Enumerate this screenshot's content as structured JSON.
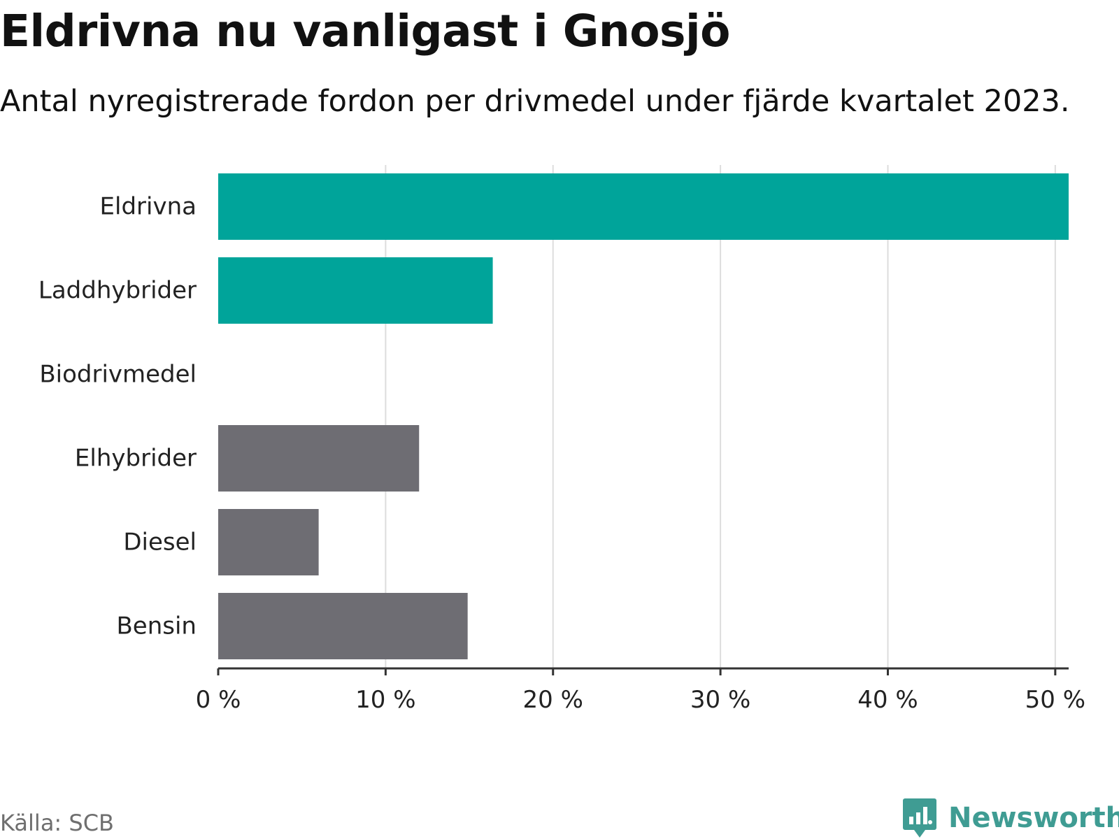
{
  "header": {
    "title": "Eldrivna nu vanligast i Gnosjö",
    "subtitle": "Antal nyregistrerade fordon per drivmedel under fjärde kvartalet 2023."
  },
  "footer": {
    "source": "Källa: SCB",
    "brand_name": "Newsworthy",
    "brand_icon": "newsworthy-logo-icon"
  },
  "colors": {
    "highlight": "#00A49A",
    "neutral": "#6E6D73",
    "grid": "#DDDDDD",
    "axis": "#333333",
    "brand": "#3F9C93"
  },
  "chart_data": {
    "type": "bar",
    "orientation": "horizontal",
    "title": "Eldrivna nu vanligast i Gnosjö",
    "subtitle": "Antal nyregistrerade fordon per drivmedel under fjärde kvartalet 2023.",
    "categories": [
      "Eldrivna",
      "Laddhybrider",
      "Biodrivmedel",
      "Elhybrider",
      "Diesel",
      "Bensin"
    ],
    "values": [
      50.8,
      16.4,
      0,
      12.0,
      6.0,
      14.9
    ],
    "unit": "%",
    "bar_colors": [
      "#00A49A",
      "#00A49A",
      "#6E6D73",
      "#6E6D73",
      "#6E6D73",
      "#6E6D73"
    ],
    "xlim": [
      0,
      50.8
    ],
    "xticks": [
      0,
      10,
      20,
      30,
      40,
      50
    ],
    "xtick_labels": [
      "0 %",
      "10 %",
      "20 %",
      "30 %",
      "40 %",
      "50 %"
    ],
    "xlabel": "",
    "ylabel": "",
    "grid": true,
    "legend": "none"
  }
}
